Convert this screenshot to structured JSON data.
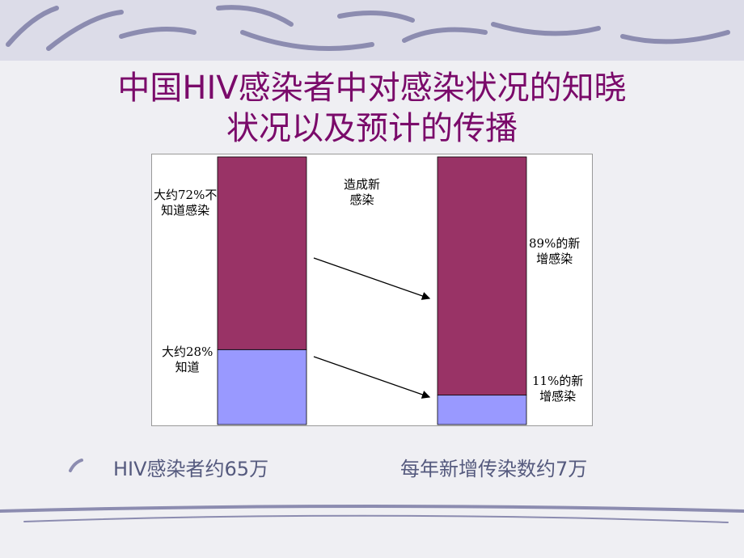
{
  "chart_data": {
    "type": "bar",
    "stacked": true,
    "title": "中国HIV感染者中对感染状况的知晓\n状况以及预计的传播",
    "categories": [
      null,
      null
    ],
    "series": [
      {
        "color": "#9999ff",
        "values": [
          28,
          11
        ]
      },
      {
        "color": "#993366",
        "values": [
          72,
          89
        ]
      }
    ],
    "ylim": [
      0,
      100
    ],
    "annotations": [
      "大约72%不\n知道感染",
      "大约28%\n知道",
      "造成新\n感染",
      "89%的新\n增感染",
      "11%的新\n增感染"
    ]
  },
  "captions": [
    "HIV感染者约65万",
    "每年新增传染数约7万"
  ]
}
